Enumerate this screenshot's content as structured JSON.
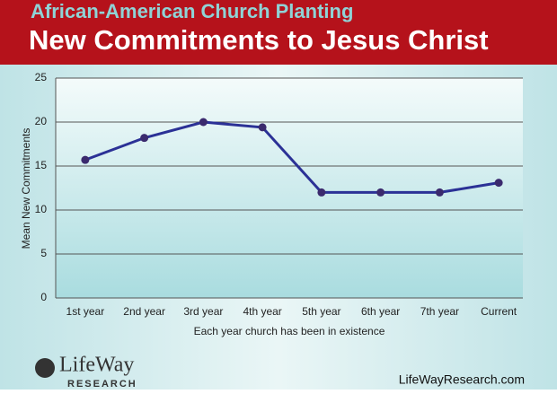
{
  "chart_data": {
    "type": "line",
    "title": "African-American Church Planting",
    "subtitle": "New Commitments to Jesus Christ",
    "y_label": "Mean New Commitments",
    "x_label": "Each year church has been in existence",
    "categories": [
      "1st year",
      "2nd year",
      "3rd year",
      "4th year",
      "5th year",
      "6th year",
      "7th year",
      "Current"
    ],
    "values": [
      15.7,
      18.2,
      20,
      19.4,
      12,
      12,
      12,
      13.1
    ],
    "color": "#2b3196",
    "marker_color": "#3b2a6e",
    "ylim": [
      0,
      25
    ],
    "yticks": [
      0,
      5,
      10,
      15,
      20,
      25
    ],
    "grid": true,
    "logo": "LifeWay",
    "logo_sub": "RESEARCH",
    "website": "LifeWayResearch.com"
  }
}
